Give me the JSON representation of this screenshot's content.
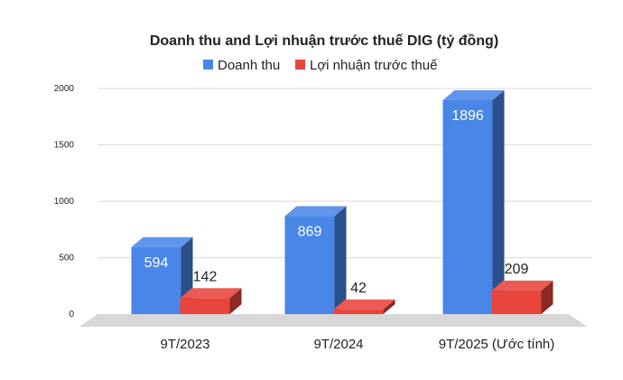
{
  "chart_data": {
    "type": "bar",
    "title": "Doanh thu and Lợi nhuận trước thuế DIG (tỷ đồng)",
    "categories": [
      "9T/2023",
      "9T/2024",
      "9T/2025 (Ước tính)"
    ],
    "series": [
      {
        "name": "Doanh thu",
        "values": [
          594,
          869,
          1896
        ],
        "color": "#4A86E8"
      },
      {
        "name": "Lợi nhuận trước thuế",
        "values": [
          142,
          42,
          209
        ],
        "color": "#E8453C"
      }
    ],
    "ylim": [
      0,
      2000
    ],
    "yticks": [
      "0",
      "500",
      "1000",
      "1500",
      "2000"
    ],
    "data_labels": [
      [
        "594",
        "869",
        "1896"
      ],
      [
        "142",
        "42",
        "209"
      ]
    ],
    "legend_position": "top",
    "grid": true,
    "three_d": true
  }
}
